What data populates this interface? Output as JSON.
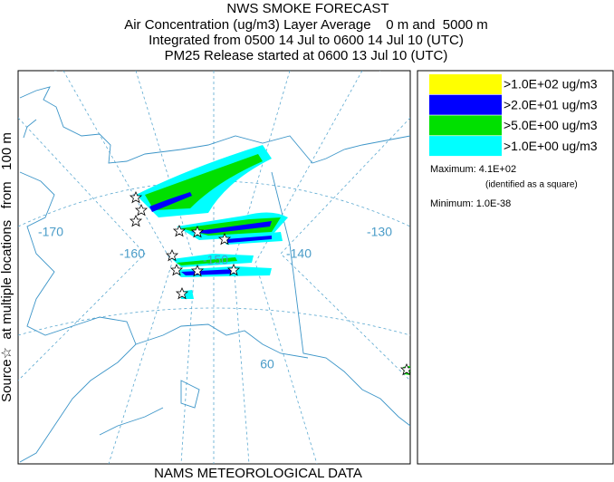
{
  "title": "NWS SMOKE FORECAST",
  "subtitle_lines": [
    "Air Concentration (ug/m3) Layer Average    0 m and  5000 m",
    "Integrated from 0500 14 Jul to 0600 14 Jul 10 (UTC)",
    "PM25 Release started at 0600 13 Jul 10 (UTC)"
  ],
  "side_label": "Source☆  at multiple locations   from   100 m",
  "footer": "NAMS METEOROLOGICAL DATA",
  "map": {
    "grid_labels": [
      "-170",
      "-160",
      "-150",
      "-140",
      "-130",
      "60"
    ]
  },
  "legend": {
    "items": [
      {
        "label": ">1.0E+02 ug/m3",
        "color": "#ffff00"
      },
      {
        "label": ">2.0E+01 ug/m3",
        "color": "#0000ff"
      },
      {
        "label": ">5.0E+00 ug/m3",
        "color": "#00e000"
      },
      {
        "label": ">1.0E+00 ug/m3",
        "color": "#00ffff"
      }
    ],
    "maximum": "Maximum: 4.1E+02",
    "maximum_note": "(identified as a square)",
    "minimum": "Minimum: 1.0E-38"
  }
}
